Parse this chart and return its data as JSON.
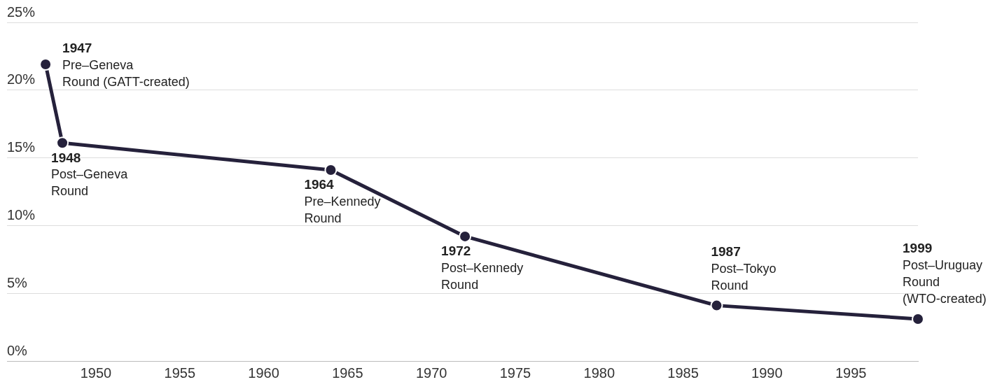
{
  "chart_data": {
    "type": "line",
    "x": [
      1947,
      1948,
      1964,
      1972,
      1987,
      1999
    ],
    "series": [
      {
        "color": "#25213b",
        "values": [
          21.9,
          16.1,
          14.1,
          9.2,
          4.1,
          3.1
        ]
      }
    ],
    "xlim": [
      1944.7,
      1999
    ],
    "xticks": [
      1950,
      1955,
      1960,
      1965,
      1970,
      1975,
      1980,
      1985,
      1990,
      1995
    ],
    "ylim": [
      0,
      25
    ],
    "yticks": [
      {
        "value": 0,
        "label": "0%"
      },
      {
        "value": 5,
        "label": "5%"
      },
      {
        "value": 10,
        "label": "10%"
      },
      {
        "value": 15,
        "label": "15%"
      },
      {
        "value": 20,
        "label": "20%"
      },
      {
        "value": 25,
        "label": "25%"
      }
    ],
    "grid": "y",
    "marker": "circle",
    "line_style": "solid",
    "annotations": [
      {
        "text": "1947\nPre–Geneva\nRound (GATT-created)",
        "x": 1947,
        "y": 21.9
      },
      {
        "text": "1948\nPost–Geneva\nRound",
        "x": 1948,
        "y": 16.1
      },
      {
        "text": "1964\nPre–Kennedy\nRound",
        "x": 1964,
        "y": 14.1
      },
      {
        "text": "1972\nPost–Kennedy\nRound",
        "x": 1972,
        "y": 9.2
      },
      {
        "text": "1987\nPost–Tokyo\nRound",
        "x": 1987,
        "y": 4.1
      },
      {
        "text": "1999\nPost–Uruguay\nRound\n(WTO-created)",
        "x": 1999,
        "y": 3.1
      }
    ]
  }
}
